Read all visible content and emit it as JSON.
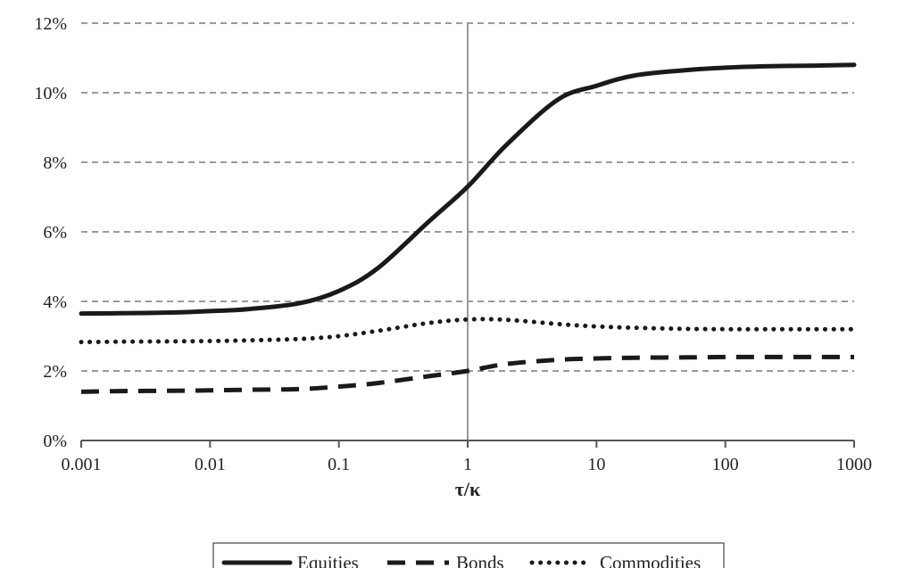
{
  "chart_data": {
    "type": "line",
    "title": "",
    "xlabel": "τ/κ",
    "ylabel": "",
    "x_scale": "log",
    "xlim": [
      0.001,
      1000
    ],
    "ylim": [
      0,
      12
    ],
    "x_ticks": [
      "0.001",
      "0.01",
      "0.1",
      "1",
      "10",
      "100",
      "1000"
    ],
    "x_tick_values": [
      0.001,
      0.01,
      0.1,
      1,
      10,
      100,
      1000
    ],
    "y_ticks": [
      "0%",
      "2%",
      "4%",
      "6%",
      "8%",
      "10%",
      "12%"
    ],
    "y_tick_values": [
      0,
      2,
      4,
      6,
      8,
      10,
      12
    ],
    "grid": "horizontal dashed",
    "reference_line_x": 1,
    "legend_position": "bottom",
    "x": [
      0.001,
      0.002,
      0.005,
      0.01,
      0.02,
      0.05,
      0.1,
      0.2,
      0.5,
      1,
      2,
      5,
      10,
      20,
      50,
      100,
      200,
      500,
      1000
    ],
    "series": [
      {
        "name": "Equities",
        "style": "solid",
        "values": [
          3.65,
          3.66,
          3.68,
          3.72,
          3.78,
          3.95,
          4.3,
          4.95,
          6.3,
          7.3,
          8.5,
          9.8,
          10.2,
          10.5,
          10.65,
          10.72,
          10.76,
          10.78,
          10.8
        ]
      },
      {
        "name": "Bonds",
        "style": "dashed",
        "values": [
          1.4,
          1.42,
          1.43,
          1.44,
          1.46,
          1.48,
          1.55,
          1.65,
          1.85,
          2.0,
          2.2,
          2.32,
          2.36,
          2.38,
          2.39,
          2.4,
          2.4,
          2.4,
          2.4
        ]
      },
      {
        "name": "Commodities",
        "style": "dotted",
        "values": [
          2.83,
          2.84,
          2.85,
          2.86,
          2.88,
          2.92,
          3.0,
          3.15,
          3.38,
          3.48,
          3.47,
          3.35,
          3.28,
          3.24,
          3.21,
          3.2,
          3.2,
          3.2,
          3.2
        ]
      }
    ]
  }
}
